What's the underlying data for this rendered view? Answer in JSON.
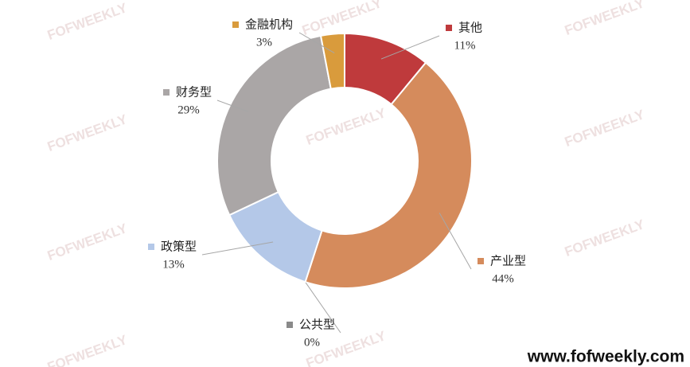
{
  "chart_data": {
    "type": "pie",
    "donut": true,
    "categories": [
      "其他",
      "产业型",
      "公共型",
      "政策型",
      "财务型",
      "金融机构"
    ],
    "values": [
      11,
      44,
      0,
      13,
      29,
      3
    ],
    "value_labels": [
      "11%",
      "44%",
      "0%",
      "13%",
      "29%",
      "3%"
    ],
    "colors": [
      "#bf3a3c",
      "#d58b5c",
      "#8a8a8a",
      "#b4c8e8",
      "#aaa6a6",
      "#d99b3c"
    ],
    "watermark": "FOFWEEKLY",
    "footer": "www.fofweekly.com"
  }
}
